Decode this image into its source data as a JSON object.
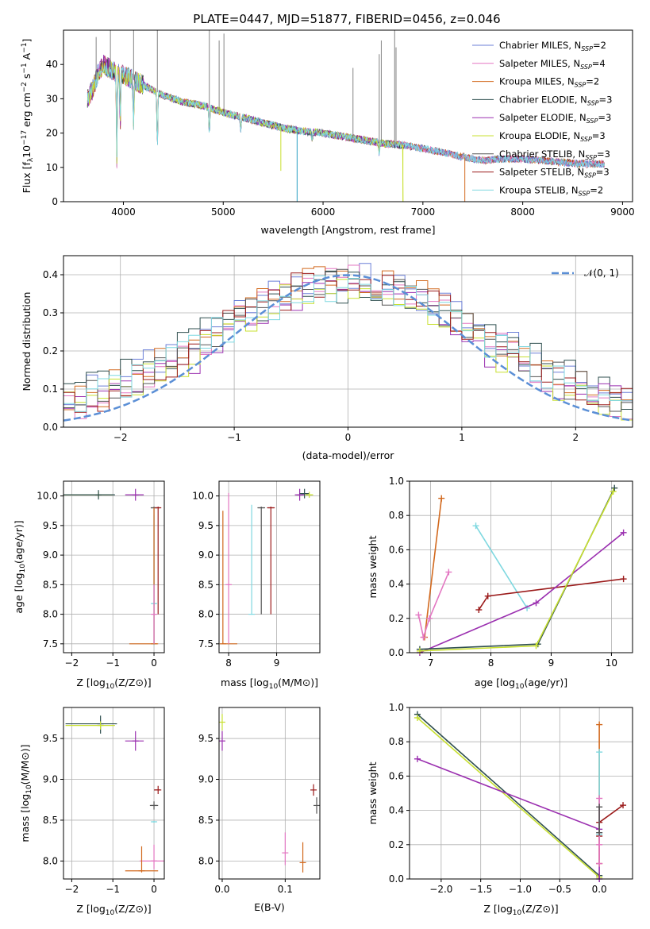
{
  "figure_title": "PLATE=0447, MJD=51877, FIBERID=0456, z=0.046",
  "colors": {
    "Chabrier MILES": "#6b7fd7",
    "Salpeter MILES": "#e377c2",
    "Kroupa MILES": "#d2691e",
    "Chabrier ELODIE": "#2f4f4f",
    "Salpeter ELODIE": "#9b30b0",
    "Kroupa ELODIE": "#c8e030",
    "Chabrier STELIB": "#555555",
    "Salpeter STELIB": "#9b1b1b",
    "Kroupa STELIB": "#7fd8e0",
    "gaussian": "#5b8fd6"
  },
  "chart_data": [
    {
      "id": "spectrum",
      "type": "line",
      "title": "PLATE=0447, MJD=51877, FIBERID=0456, z=0.046",
      "xlabel": "wavelength [Angstrom, rest frame]",
      "ylabel": "Flux [f_λ 10^-17 erg cm^-2 s^-1 A^-1]",
      "xlim": [
        3400,
        9100
      ],
      "ylim": [
        0,
        50
      ],
      "xticks": [
        "4000",
        "5000",
        "6000",
        "7000",
        "8000",
        "9000"
      ],
      "yticks": [
        "0",
        "10",
        "20",
        "30",
        "40"
      ],
      "grid": false,
      "legend_position": "top-right",
      "legend": [
        "Chabrier MILES, N_SSP=2",
        "Salpeter MILES, N_SSP=4",
        "Kroupa MILES, N_SSP=2",
        "Chabrier ELODIE, N_SSP=3",
        "Salpeter ELODIE, N_SSP=3",
        "Kroupa ELODIE, N_SSP=3",
        "Chabrier STELIB, N_SSP=3",
        "Salpeter STELIB, N_SSP=3",
        "Kroupa STELIB, N_SSP=2"
      ],
      "continuum": {
        "x": [
          3640,
          3700,
          3750,
          3800,
          3900,
          4000,
          4200,
          4400,
          4600,
          4800,
          5000,
          5200,
          5400,
          5600,
          5800,
          6000,
          6200,
          6400,
          6600,
          6800,
          7000,
          7200,
          7400,
          7600,
          7800,
          8000,
          8200,
          8400,
          8600,
          8820
        ],
        "y": [
          30,
          33,
          38,
          40,
          38,
          37,
          34,
          31,
          29,
          28,
          26,
          24.5,
          23,
          21.5,
          20.5,
          20,
          19,
          18,
          17,
          16.5,
          15.5,
          14.5,
          13,
          12,
          12.5,
          12.5,
          12,
          11.5,
          11,
          11
        ]
      },
      "absorption_lines": [
        {
          "x": 3934,
          "depth": 25
        },
        {
          "x": 3968,
          "depth": 15
        },
        {
          "x": 4102,
          "depth": 12
        },
        {
          "x": 4340,
          "depth": 16
        },
        {
          "x": 4861,
          "depth": 8
        },
        {
          "x": 5175,
          "depth": 4
        },
        {
          "x": 5890,
          "depth": 3
        },
        {
          "x": 6563,
          "depth": 3
        }
      ],
      "data_spikes": [
        {
          "x": 3727,
          "y": 48
        },
        {
          "x": 3870,
          "y": 50
        },
        {
          "x": 4102,
          "y": 50
        },
        {
          "x": 4340,
          "y": 50
        },
        {
          "x": 4861,
          "y": 50
        },
        {
          "x": 4959,
          "y": 47
        },
        {
          "x": 5007,
          "y": 49
        },
        {
          "x": 6300,
          "y": 39
        },
        {
          "x": 6563,
          "y": 43
        },
        {
          "x": 6583,
          "y": 47
        },
        {
          "x": 6717,
          "y": 50
        },
        {
          "x": 6731,
          "y": 45
        }
      ],
      "data_dips": [
        {
          "x": 5577,
          "y": 9
        },
        {
          "x": 5740,
          "y": 0
        },
        {
          "x": 6800,
          "y": 0
        },
        {
          "x": 7420,
          "y": 0
        }
      ]
    },
    {
      "id": "residuals",
      "type": "step",
      "xlabel": "(data-model)/error",
      "ylabel": "Normed distribution",
      "xlim": [
        -2.5,
        2.5
      ],
      "ylim": [
        0,
        0.45
      ],
      "xticks": [
        "−2",
        "−1",
        "0",
        "1",
        "2"
      ],
      "yticks": [
        "0.0",
        "0.1",
        "0.2",
        "0.3",
        "0.4"
      ],
      "grid": true,
      "legend_position": "top-right",
      "legend": [
        "𝒩(0, 1)"
      ],
      "bins": 50
    },
    {
      "id": "age_vs_Z",
      "type": "errorbar",
      "xlabel": "Z [log10(Z/Z⊙)]",
      "ylabel": "age  [log10(age/yr)]",
      "xlim": [
        -2.2,
        0.25
      ],
      "ylim": [
        7.35,
        10.25
      ],
      "xticks": [
        {
          "v": -2,
          "t": "−2"
        },
        {
          "v": -1,
          "t": "−1"
        },
        {
          "v": 0,
          "t": "0"
        }
      ],
      "yticks": [
        {
          "v": 7.5,
          "t": "7.5"
        },
        {
          "v": 8.0,
          "t": "8.0"
        },
        {
          "v": 8.5,
          "t": "8.5"
        },
        {
          "v": 9.0,
          "t": "9.0"
        },
        {
          "v": 9.5,
          "t": "9.5"
        },
        {
          "v": 10.0,
          "t": "10.0"
        }
      ],
      "points": [
        {
          "model": "Kroupa ELODIE",
          "x": -1.35,
          "y": 10.02,
          "xerr": [
            0.85,
            0.35
          ],
          "yerr": [
            0.05,
            0.05
          ]
        },
        {
          "model": "Chabrier ELODIE",
          "x": -1.35,
          "y": 10.02,
          "xerr": [
            0.85,
            0.4
          ],
          "yerr": [
            0.08,
            0.08
          ]
        },
        {
          "model": "Salpeter ELODIE",
          "x": -0.45,
          "y": 10.02,
          "xerr": [
            0.25,
            0.2
          ],
          "yerr": [
            0.1,
            0.1
          ]
        },
        {
          "model": "Chabrier STELIB",
          "x": 0.0,
          "y": 9.8,
          "xerr": [
            0.08,
            0.08
          ],
          "yerr": [
            2.3,
            0.02
          ]
        },
        {
          "model": "Salpeter STELIB",
          "x": 0.1,
          "y": 9.8,
          "xerr": [
            0.05,
            0.05
          ],
          "yerr": [
            1.8,
            0.02
          ]
        },
        {
          "model": "Kroupa STELIB",
          "x": 0.0,
          "y": 8.18,
          "xerr": [
            0.05,
            0.05
          ],
          "yerr": [
            0.7,
            1.5
          ]
        },
        {
          "model": "Kroupa MILES",
          "x": 0.0,
          "y": 7.5,
          "xerr": [
            0.6,
            0.1
          ],
          "yerr": [
            0.0,
            2.3
          ]
        },
        {
          "model": "Salpeter MILES",
          "x": 0.0,
          "y": 8.0,
          "xerr": [
            0.05,
            0.05
          ],
          "yerr": [
            0.5,
            0.5
          ]
        }
      ]
    },
    {
      "id": "age_vs_mass",
      "type": "errorbar",
      "xlabel": "mass [log10(M/M⊙)]",
      "xlim": [
        7.8,
        9.9
      ],
      "ylim": [
        7.35,
        10.25
      ],
      "xticks": [
        {
          "v": 8,
          "t": "8"
        },
        {
          "v": 9,
          "t": "9"
        }
      ],
      "yticks": [
        {
          "v": 7.5,
          "t": "7.5"
        },
        {
          "v": 8.0,
          "t": "8.0"
        },
        {
          "v": 8.5,
          "t": "8.5"
        },
        {
          "v": 9.0,
          "t": "9.0"
        },
        {
          "v": 9.5,
          "t": "9.5"
        },
        {
          "v": 10.0,
          "t": "10.0"
        }
      ],
      "points": [
        {
          "model": "Kroupa MILES",
          "x": 7.88,
          "y": 7.5,
          "xerr": [
            0.02,
            0.3
          ],
          "yerr": [
            0.0,
            2.25
          ]
        },
        {
          "model": "Salpeter MILES",
          "x": 8.0,
          "y": 8.5,
          "xerr": [
            0.01,
            0.01
          ],
          "yerr": [
            1.0,
            1.55
          ]
        },
        {
          "model": "Kroupa STELIB",
          "x": 8.48,
          "y": 8.0,
          "xerr": [
            0.01,
            0.01
          ],
          "yerr": [
            0.0,
            1.85
          ]
        },
        {
          "model": "Chabrier STELIB",
          "x": 8.68,
          "y": 9.8,
          "xerr": [
            0.08,
            0.08
          ],
          "yerr": [
            1.8,
            0.02
          ]
        },
        {
          "model": "Salpeter STELIB",
          "x": 8.88,
          "y": 9.8,
          "xerr": [
            0.08,
            0.08
          ],
          "yerr": [
            1.8,
            0.02
          ]
        },
        {
          "model": "Salpeter ELODIE",
          "x": 9.48,
          "y": 10.02,
          "xerr": [
            0.1,
            0.1
          ],
          "yerr": [
            0.1,
            0.1
          ]
        },
        {
          "model": "Chabrier ELODIE",
          "x": 9.58,
          "y": 10.04,
          "xerr": [
            0.1,
            0.1
          ],
          "yerr": [
            0.08,
            0.08
          ]
        },
        {
          "model": "Kroupa ELODIE",
          "x": 9.68,
          "y": 10.02,
          "xerr": [
            0.08,
            0.08
          ],
          "yerr": [
            0.05,
            0.05
          ]
        }
      ]
    },
    {
      "id": "weight_vs_age",
      "type": "line",
      "xlabel": "age  [log10(age/yr)]",
      "ylabel": "mass weight",
      "xlim": [
        6.65,
        10.35
      ],
      "ylim": [
        0,
        1
      ],
      "xticks": [
        {
          "v": 7,
          "t": "7"
        },
        {
          "v": 8,
          "t": "8"
        },
        {
          "v": 9,
          "t": "9"
        },
        {
          "v": 10,
          "t": "10"
        }
      ],
      "yticks": [
        {
          "v": 0,
          "t": "0.0"
        },
        {
          "v": 0.2,
          "t": "0.2"
        },
        {
          "v": 0.4,
          "t": "0.4"
        },
        {
          "v": 0.6,
          "t": "0.6"
        },
        {
          "v": 0.8,
          "t": "0.8"
        },
        {
          "v": 1,
          "t": "1.0"
        }
      ],
      "grid": true,
      "series": [
        {
          "model": "Kroupa MILES",
          "x": [
            6.9,
            7.18
          ],
          "y": [
            0.09,
            0.9
          ]
        },
        {
          "model": "Salpeter MILES",
          "x": [
            6.8,
            6.88,
            6.98,
            7.3
          ],
          "y": [
            0.22,
            0.09,
            0.2,
            0.47
          ]
        },
        {
          "model": "Kroupa STELIB",
          "x": [
            7.75,
            8.6
          ],
          "y": [
            0.74,
            0.26
          ]
        },
        {
          "model": "Salpeter STELIB",
          "x": [
            7.8,
            7.95,
            10.2
          ],
          "y": [
            0.25,
            0.33,
            0.43
          ]
        },
        {
          "model": "Salpeter ELODIE",
          "x": [
            6.82,
            8.75,
            10.2
          ],
          "y": [
            0.0,
            0.29,
            0.7
          ]
        },
        {
          "model": "Chabrier ELODIE",
          "x": [
            6.82,
            8.78,
            10.05
          ],
          "y": [
            0.02,
            0.05,
            0.96
          ]
        },
        {
          "model": "Kroupa ELODIE",
          "x": [
            6.82,
            8.75,
            10.03
          ],
          "y": [
            0.01,
            0.04,
            0.94
          ]
        }
      ]
    },
    {
      "id": "mass_vs_Z",
      "type": "errorbar",
      "xlabel": "Z [log10(Z/Z⊙)]",
      "ylabel": "mass [log10(M/M⊙)]",
      "xlim": [
        -2.2,
        0.25
      ],
      "ylim": [
        7.78,
        9.88
      ],
      "xticks": [
        {
          "v": -2,
          "t": "−2"
        },
        {
          "v": -1,
          "t": "−1"
        },
        {
          "v": 0,
          "t": "0"
        }
      ],
      "yticks": [
        {
          "v": 8.0,
          "t": "8.0"
        },
        {
          "v": 8.5,
          "t": "8.5"
        },
        {
          "v": 9.0,
          "t": "9.0"
        },
        {
          "v": 9.5,
          "t": "9.5"
        }
      ],
      "points": [
        {
          "model": "Chabrier ELODIE",
          "x": -1.3,
          "y": 9.68,
          "xerr": [
            0.85,
            0.4
          ],
          "yerr": [
            0.12,
            0.1
          ]
        },
        {
          "model": "Kroupa ELODIE",
          "x": -1.3,
          "y": 9.66,
          "xerr": [
            0.85,
            0.35
          ],
          "yerr": [
            0.05,
            0.05
          ]
        },
        {
          "model": "Salpeter ELODIE",
          "x": -0.45,
          "y": 9.47,
          "xerr": [
            0.25,
            0.2
          ],
          "yerr": [
            0.12,
            0.12
          ]
        },
        {
          "model": "Salpeter STELIB",
          "x": 0.1,
          "y": 8.87,
          "xerr": [
            0.1,
            0.05
          ],
          "yerr": [
            0.05,
            0.05
          ]
        },
        {
          "model": "Chabrier STELIB",
          "x": 0.0,
          "y": 8.68,
          "xerr": [
            0.1,
            0.1
          ],
          "yerr": [
            0.05,
            0.05
          ]
        },
        {
          "model": "Kroupa STELIB",
          "x": 0.0,
          "y": 8.48,
          "xerr": [
            0.05,
            0.05
          ],
          "yerr": [
            0.01,
            0.01
          ]
        },
        {
          "model": "Salpeter MILES",
          "x": 0.0,
          "y": 8.0,
          "xerr": [
            0.35,
            0.25
          ],
          "yerr": [
            0.1,
            0.2
          ]
        },
        {
          "model": "Kroupa MILES",
          "x": -0.3,
          "y": 7.88,
          "xerr": [
            0.4,
            0.4
          ],
          "yerr": [
            0.02,
            0.3
          ]
        }
      ]
    },
    {
      "id": "mass_vs_ebv",
      "type": "errorbar",
      "xlabel": "E(B-V)",
      "xlim": [
        -0.005,
        0.155
      ],
      "ylim": [
        7.78,
        9.88
      ],
      "xticks": [
        {
          "v": 0,
          "t": "0.0"
        },
        {
          "v": 0.1,
          "t": "0.1"
        }
      ],
      "yticks": [
        {
          "v": 8.0,
          "t": "8.0"
        },
        {
          "v": 8.5,
          "t": "8.5"
        },
        {
          "v": 9.0,
          "t": "9.0"
        },
        {
          "v": 9.5,
          "t": "9.5"
        }
      ],
      "points": [
        {
          "model": "Kroupa ELODIE",
          "x": 0.0,
          "y": 9.7,
          "xerr": [
            0,
            0
          ],
          "yerr": [
            0.1,
            0.1
          ]
        },
        {
          "model": "Salpeter ELODIE",
          "x": 0.0,
          "y": 9.47,
          "xerr": [
            0,
            0
          ],
          "yerr": [
            0.12,
            0.12
          ]
        },
        {
          "model": "Salpeter MILES",
          "x": 0.1,
          "y": 8.1,
          "xerr": [
            0,
            0
          ],
          "yerr": [
            0.15,
            0.25
          ]
        },
        {
          "model": "Kroupa MILES",
          "x": 0.128,
          "y": 7.98,
          "xerr": [
            0,
            0
          ],
          "yerr": [
            0.12,
            0.25
          ]
        },
        {
          "model": "Salpeter STELIB",
          "x": 0.145,
          "y": 8.87,
          "xerr": [
            0,
            0
          ],
          "yerr": [
            0.07,
            0.07
          ]
        },
        {
          "model": "Chabrier STELIB",
          "x": 0.15,
          "y": 8.68,
          "xerr": [
            0,
            0
          ],
          "yerr": [
            0.1,
            0.1
          ]
        }
      ]
    },
    {
      "id": "weight_vs_Z",
      "type": "line",
      "xlabel": "Z [log10(Z/Z⊙)]",
      "ylabel": "mass weight",
      "xlim": [
        -2.4,
        0.42
      ],
      "ylim": [
        0,
        1
      ],
      "xticks": [
        {
          "v": -2.0,
          "t": "−2.0"
        },
        {
          "v": -1.5,
          "t": "−1.5"
        },
        {
          "v": -1.0,
          "t": "−1.0"
        },
        {
          "v": -0.5,
          "t": "−0.5"
        },
        {
          "v": 0.0,
          "t": "0.0"
        }
      ],
      "yticks": [
        {
          "v": 0,
          "t": "0.0"
        },
        {
          "v": 0.2,
          "t": "0.2"
        },
        {
          "v": 0.4,
          "t": "0.4"
        },
        {
          "v": 0.6,
          "t": "0.6"
        },
        {
          "v": 0.8,
          "t": "0.8"
        },
        {
          "v": 1,
          "t": "1.0"
        }
      ],
      "grid": true,
      "series": [
        {
          "model": "Chabrier ELODIE",
          "x": [
            -2.3,
            0.0
          ],
          "y": [
            0.96,
            0.02
          ]
        },
        {
          "model": "Kroupa ELODIE",
          "x": [
            -2.3,
            0.0
          ],
          "y": [
            0.94,
            0.01
          ]
        },
        {
          "model": "Salpeter ELODIE",
          "x": [
            -2.3,
            0.0,
            0.0
          ],
          "y": [
            0.7,
            0.29,
            0.0
          ]
        },
        {
          "model": "Salpeter STELIB",
          "x": [
            0.0,
            0.0,
            0.3
          ],
          "y": [
            0.25,
            0.33,
            0.43
          ]
        },
        {
          "model": "Kroupa MILES",
          "x": [
            0.0,
            0.0
          ],
          "y": [
            0.09,
            0.9
          ]
        },
        {
          "model": "Kroupa STELIB",
          "x": [
            0.0,
            0.0
          ],
          "y": [
            0.26,
            0.74
          ]
        },
        {
          "model": "Salpeter MILES",
          "x": [
            0.0,
            0.0,
            0.0
          ],
          "y": [
            0.09,
            0.2,
            0.47
          ]
        },
        {
          "model": "Chabrier STELIB",
          "x": [
            0.0,
            0.0
          ],
          "y": [
            0.27,
            0.42
          ]
        }
      ]
    }
  ]
}
